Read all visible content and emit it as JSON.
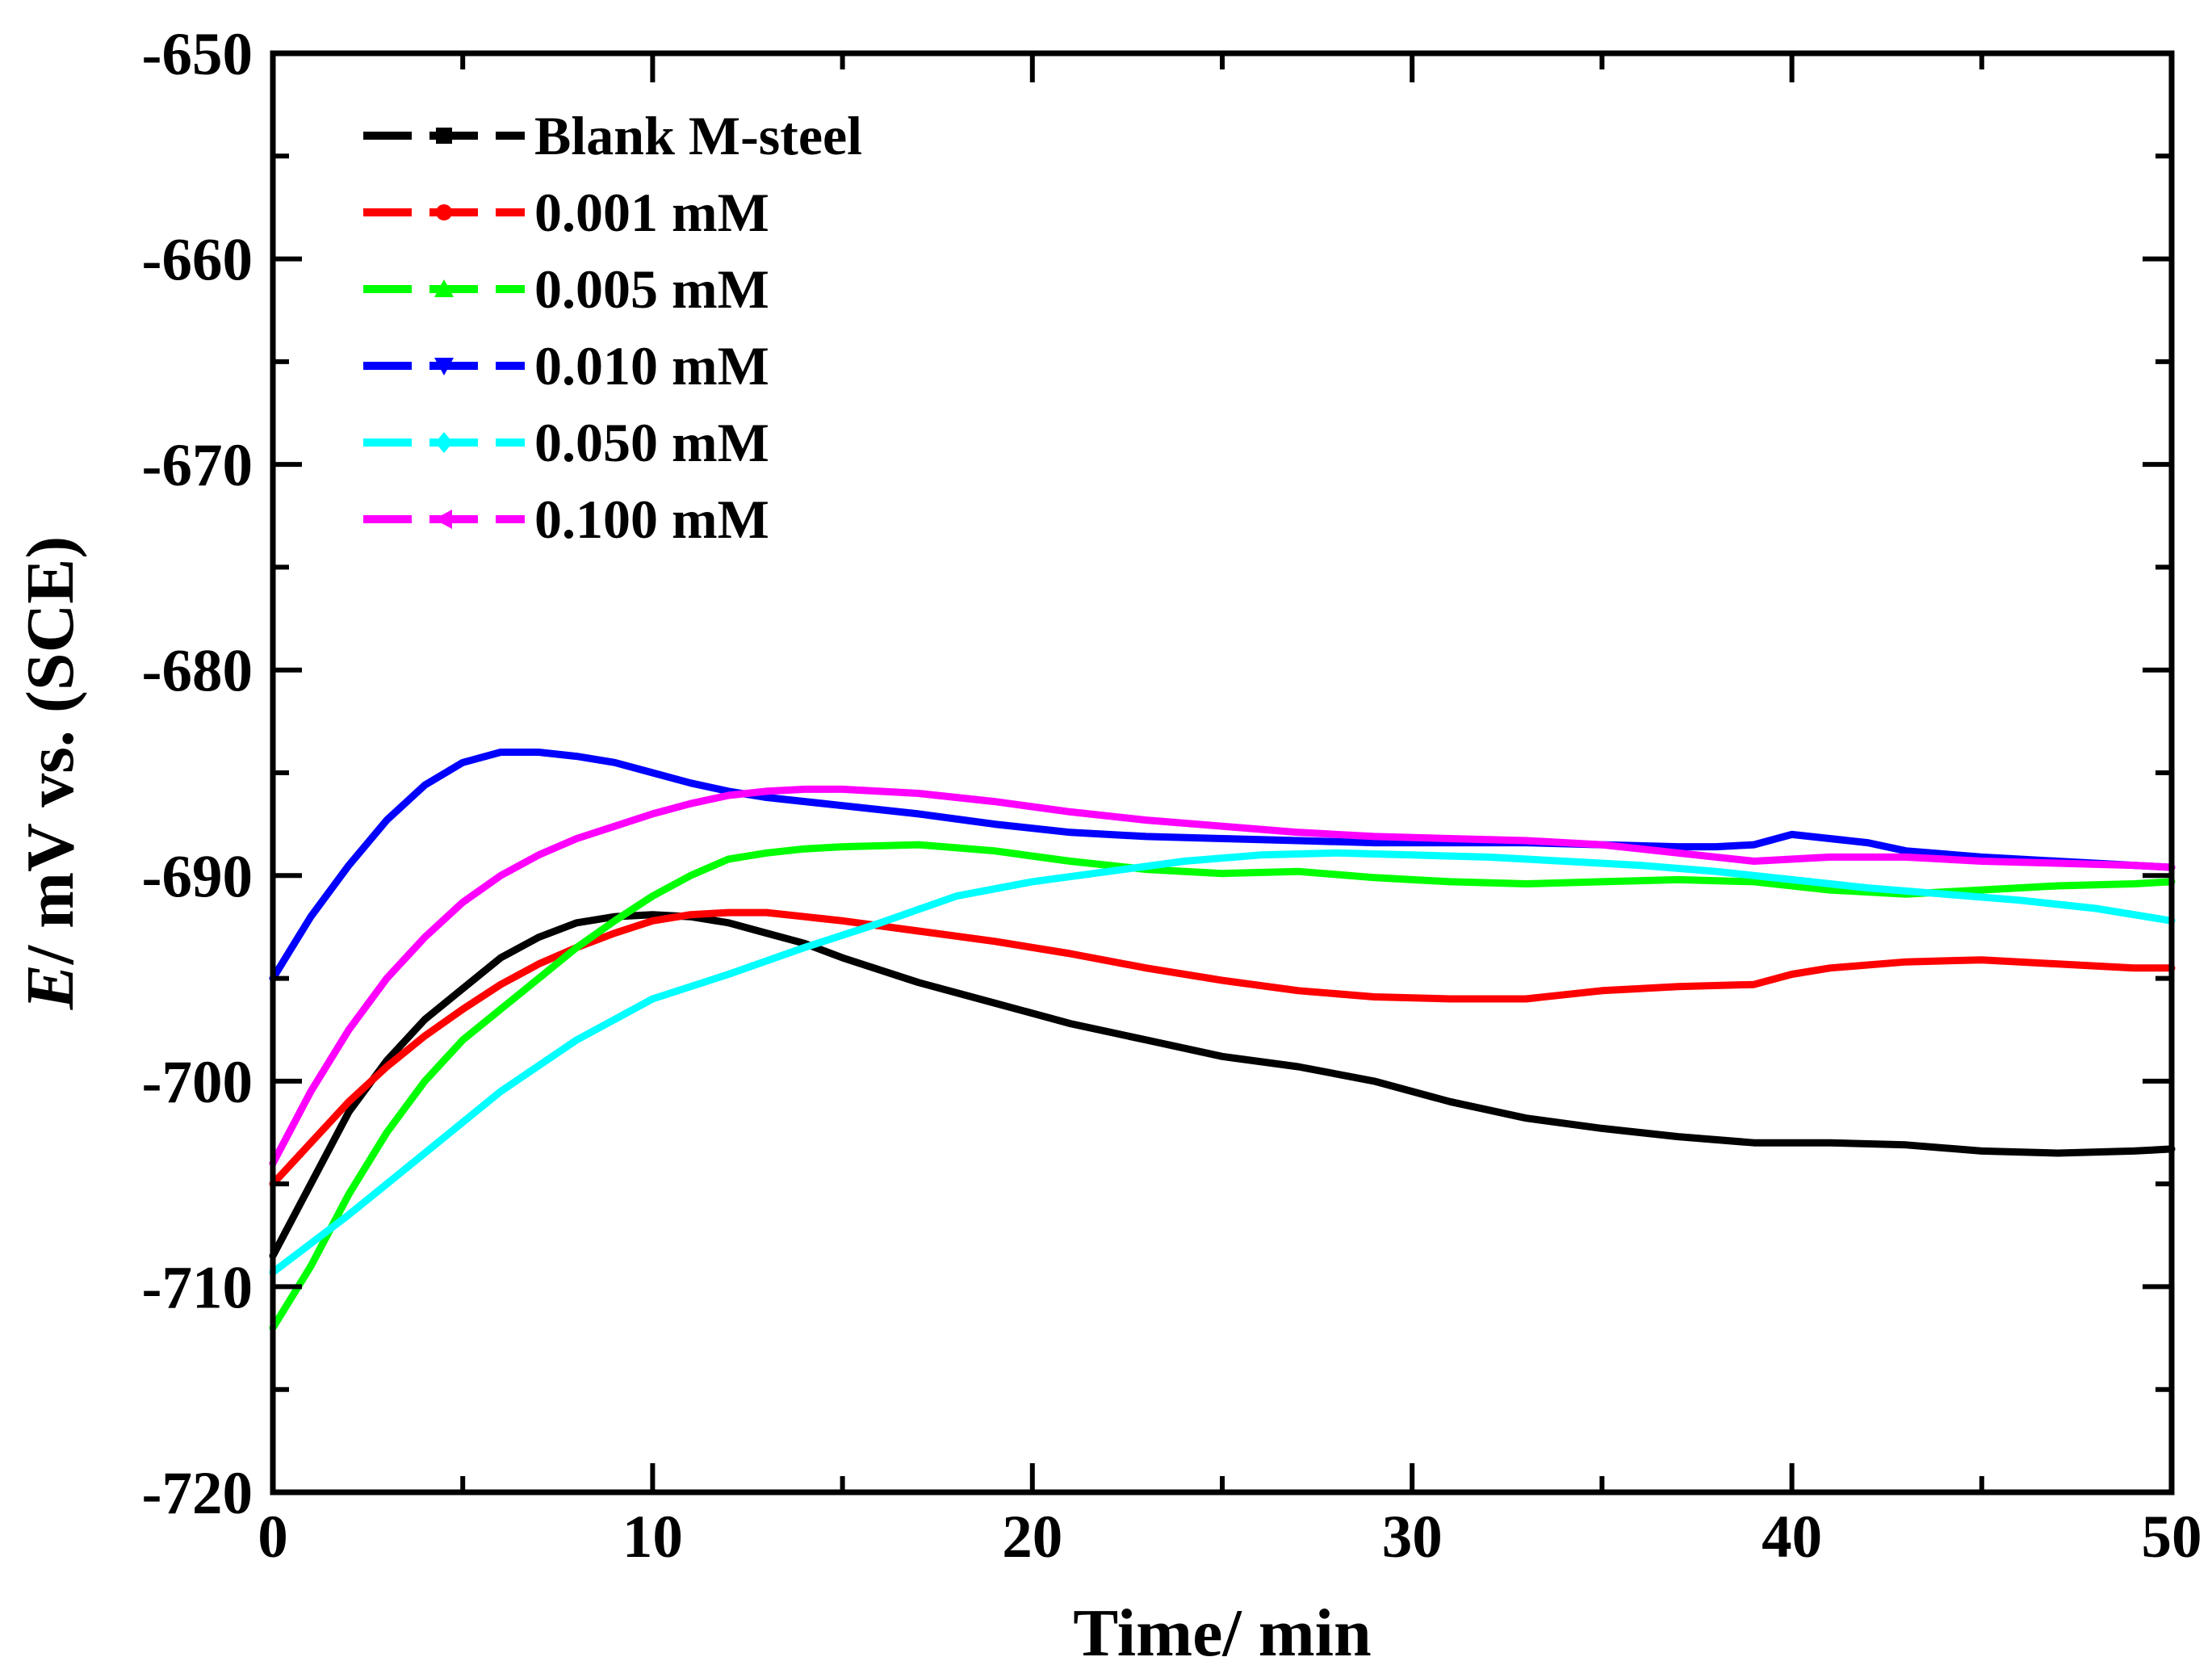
{
  "chart_data": {
    "type": "line",
    "title": "",
    "xlabel": "Time/ min",
    "ylabel_italic": "E",
    "ylabel_rest": "/ mV vs. (SCE)",
    "xlim": [
      0,
      50
    ],
    "ylim": [
      -720,
      -650
    ],
    "xticks": [
      0,
      10,
      20,
      30,
      40,
      50
    ],
    "xtick_labels": [
      "0",
      "10",
      "20",
      "30",
      "40",
      "50"
    ],
    "yticks": [
      -650,
      -660,
      -670,
      -680,
      -690,
      -700,
      -710,
      -720
    ],
    "ytick_labels": [
      "-650",
      "-660",
      "-670",
      "-680",
      "-690",
      "-700",
      "-710",
      "-720"
    ],
    "grid": false,
    "legend_position": "top-left",
    "series": [
      {
        "name": "Blank M-steel",
        "color": "#000000",
        "marker": "square",
        "x": [
          0,
          1,
          2,
          3,
          4,
          5,
          6,
          7,
          8,
          9,
          10,
          11,
          12,
          13,
          14,
          15,
          17,
          19,
          21,
          23,
          25,
          27,
          29,
          31,
          33,
          35,
          37,
          39,
          41,
          43,
          45,
          47,
          49,
          50
        ],
        "y": [
          -708.5,
          -705,
          -701.5,
          -699,
          -697,
          -695.5,
          -694,
          -693,
          -692.3,
          -692,
          -691.9,
          -692,
          -692.3,
          -692.8,
          -693.3,
          -694,
          -695.2,
          -696.2,
          -697.2,
          -698,
          -698.8,
          -699.3,
          -700,
          -701,
          -701.8,
          -702.3,
          -702.7,
          -703,
          -703,
          -703.1,
          -703.4,
          -703.5,
          -703.4,
          -703.3
        ]
      },
      {
        "name": "0.001 mM",
        "color": "#ff0000",
        "marker": "circle",
        "x": [
          0,
          1,
          2,
          3,
          4,
          5,
          6,
          7,
          8,
          9,
          10,
          11,
          12,
          13,
          14,
          15,
          17,
          19,
          21,
          23,
          25,
          27,
          29,
          31,
          33,
          35,
          37,
          39,
          40,
          41,
          43,
          45,
          47,
          49,
          50
        ],
        "y": [
          -705,
          -703,
          -701,
          -699.3,
          -697.8,
          -696.5,
          -695.3,
          -694.3,
          -693.5,
          -692.8,
          -692.2,
          -691.9,
          -691.8,
          -691.8,
          -692,
          -692.2,
          -692.7,
          -693.2,
          -693.8,
          -694.5,
          -695.1,
          -695.6,
          -695.9,
          -696,
          -696,
          -695.6,
          -695.4,
          -695.3,
          -694.8,
          -694.5,
          -694.2,
          -694.1,
          -694.3,
          -694.5,
          -694.5
        ]
      },
      {
        "name": "0.005 mM",
        "color": "#00ff00",
        "marker": "triangle-up",
        "x": [
          0,
          1,
          2,
          3,
          4,
          5,
          6,
          7,
          8,
          9,
          10,
          11,
          12,
          13,
          14,
          15,
          17,
          19,
          21,
          23,
          25,
          27,
          29,
          31,
          33,
          35,
          37,
          39,
          41,
          43,
          45,
          47,
          49,
          50
        ],
        "y": [
          -712,
          -709,
          -705.5,
          -702.5,
          -700,
          -698,
          -696.5,
          -695,
          -693.5,
          -692.2,
          -691,
          -690,
          -689.2,
          -688.9,
          -688.7,
          -688.6,
          -688.5,
          -688.8,
          -689.3,
          -689.7,
          -689.9,
          -689.8,
          -690.1,
          -690.3,
          -690.4,
          -690.3,
          -690.2,
          -690.3,
          -690.7,
          -690.9,
          -690.7,
          -690.5,
          -690.4,
          -690.3
        ]
      },
      {
        "name": "0.010 mM",
        "color": "#0000ff",
        "marker": "triangle-down",
        "x": [
          0,
          0.5,
          1,
          2,
          3,
          4,
          5,
          6,
          7,
          8,
          9,
          10,
          11,
          12,
          13,
          14,
          15,
          17,
          19,
          21,
          23,
          25,
          27,
          29,
          31,
          33,
          35,
          37,
          38,
          39,
          40,
          41,
          42,
          43,
          45,
          47,
          49,
          50
        ],
        "y": [
          -695,
          -693.5,
          -692,
          -689.5,
          -687.3,
          -685.6,
          -684.5,
          -684,
          -684,
          -684.2,
          -684.5,
          -685,
          -685.5,
          -685.9,
          -686.2,
          -686.4,
          -686.6,
          -687,
          -687.5,
          -687.9,
          -688.1,
          -688.2,
          -688.3,
          -688.4,
          -688.4,
          -688.4,
          -688.5,
          -688.6,
          -688.6,
          -688.5,
          -688,
          -688.2,
          -688.4,
          -688.8,
          -689.1,
          -689.3,
          -689.5,
          -689.6
        ]
      },
      {
        "name": "0.050 mM",
        "color": "#00ffff",
        "marker": "diamond",
        "x": [
          0,
          2,
          4,
          6,
          8,
          10,
          12,
          14,
          16,
          18,
          20,
          22,
          24,
          26,
          28,
          30,
          32,
          34,
          36,
          38,
          40,
          42,
          44,
          46,
          48,
          50
        ],
        "y": [
          -709.3,
          -706.5,
          -703.5,
          -700.5,
          -698,
          -696,
          -694.8,
          -693.5,
          -692.3,
          -691,
          -690.3,
          -689.8,
          -689.3,
          -689,
          -688.9,
          -689,
          -689.1,
          -689.3,
          -689.5,
          -689.8,
          -690.2,
          -690.6,
          -690.9,
          -691.2,
          -691.6,
          -692.2
        ]
      },
      {
        "name": "0.100 mM",
        "color": "#ff00ff",
        "marker": "triangle-left",
        "x": [
          0,
          1,
          2,
          3,
          4,
          5,
          6,
          7,
          8,
          9,
          10,
          11,
          12,
          13,
          14,
          15,
          17,
          19,
          21,
          23,
          25,
          27,
          29,
          31,
          33,
          35,
          37,
          39,
          41,
          43,
          45,
          47,
          49,
          50
        ],
        "y": [
          -704,
          -700.5,
          -697.5,
          -695,
          -693,
          -691.3,
          -690,
          -689,
          -688.2,
          -687.6,
          -687,
          -686.5,
          -686.1,
          -685.9,
          -685.8,
          -685.8,
          -686,
          -686.4,
          -686.9,
          -687.3,
          -687.6,
          -687.9,
          -688.1,
          -688.2,
          -688.3,
          -688.5,
          -688.9,
          -689.3,
          -689.1,
          -689.1,
          -689.3,
          -689.4,
          -689.5,
          -689.6
        ]
      }
    ]
  }
}
